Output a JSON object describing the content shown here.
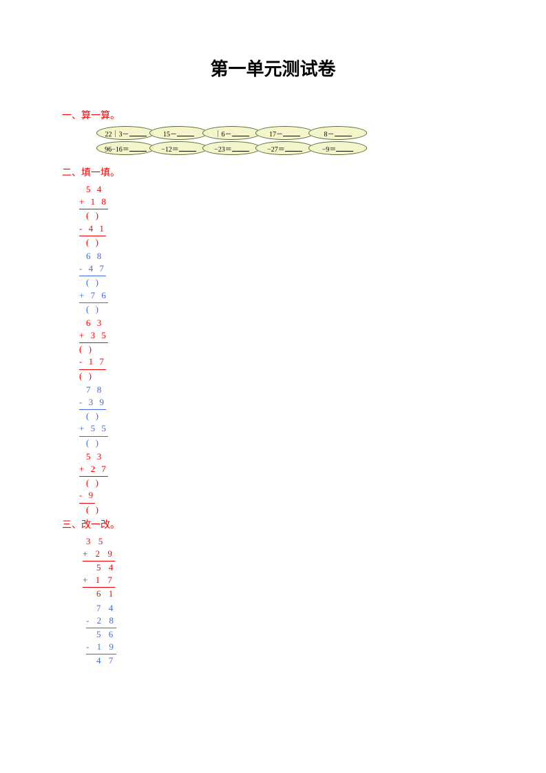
{
  "title": "第一单元测试卷",
  "section1": {
    "header": "一、算一算。",
    "row1": {
      "bg": "#f5f5cc",
      "border": "#556b2f",
      "cells": [
        "22｜3－",
        "15－",
        "｜6－",
        "17－",
        "8－"
      ]
    },
    "row2": {
      "bg": "#f5f5cc",
      "border": "#556b2f",
      "cells": [
        "96−16＝",
        "−12＝",
        "−23＝",
        "−27＝",
        "−9＝"
      ]
    }
  },
  "section2": {
    "header": "二、填一填。",
    "problems": [
      {
        "lines": [
          {
            "txt": "5 4",
            "u": false,
            "c": "red",
            "indent": 2
          },
          {
            "txt": "+ 1 8",
            "u": true,
            "c": "red",
            "indent": 1
          },
          {
            "txt": "(   )",
            "u": false,
            "c": "red",
            "indent": 2
          },
          {
            "txt": "- 4 1",
            "u": true,
            "c": "red",
            "indent": 1
          },
          {
            "txt": "(   )",
            "u": false,
            "c": "red",
            "indent": 2
          }
        ]
      },
      {
        "lines": [
          {
            "txt": "6 8",
            "u": false,
            "c": "blue",
            "indent": 2
          },
          {
            "txt": "- 4 7",
            "u": true,
            "c": "blue",
            "indent": 1
          },
          {
            "txt": "(   )",
            "u": false,
            "c": "blue",
            "indent": 2
          },
          {
            "txt": "+ 7 6",
            "u": true,
            "c": "blue",
            "indent": 1
          },
          {
            "txt": "(   )",
            "u": false,
            "c": "blue",
            "indent": 2
          }
        ]
      },
      {
        "lines": [
          {
            "txt": "6 3",
            "u": false,
            "c": "red",
            "indent": 2
          },
          {
            "txt": "+ 3 5",
            "u": true,
            "c": "red",
            "indent": 0
          },
          {
            "txt": "(   )",
            "u": false,
            "c": "red",
            "indent": 1
          },
          {
            "txt": "- 1 7",
            "u": true,
            "c": "red",
            "indent": 0
          },
          {
            "txt": "(   )",
            "u": false,
            "c": "red",
            "indent": 1
          }
        ]
      },
      {
        "lines": [
          {
            "txt": "7 8",
            "u": false,
            "c": "blue",
            "indent": 2
          },
          {
            "txt": "- 3 9",
            "u": true,
            "c": "blue",
            "indent": 0
          },
          {
            "txt": "(   )",
            "u": false,
            "c": "blue",
            "indent": 2
          },
          {
            "txt": "+ 5 5",
            "u": true,
            "c": "blue",
            "indent": 0
          },
          {
            "txt": "(   )",
            "u": false,
            "c": "blue",
            "indent": 2
          }
        ]
      },
      {
        "lines": [
          {
            "txt": "5 3",
            "u": false,
            "c": "red",
            "indent": 2
          },
          {
            "txt": "+ 2 7",
            "u": true,
            "c": "red",
            "indent": 1
          },
          {
            "txt": "(   )",
            "u": false,
            "c": "red",
            "indent": 2
          },
          {
            "txt": "-    9",
            "u": true,
            "c": "red",
            "indent": 1
          },
          {
            "txt": "(   )",
            "u": false,
            "c": "red",
            "indent": 2
          }
        ]
      }
    ]
  },
  "section3": {
    "header": "三、改一改。",
    "problems": [
      {
        "lines": [
          {
            "txt": "3 5",
            "u": false,
            "c": "red",
            "pad": 2
          },
          {
            "txt": "+ 2 9",
            "u": true,
            "c": "red",
            "pad": 1
          },
          {
            "txt": "5 4",
            "u": false,
            "c": "red",
            "pad": 3
          },
          {
            "txt": "+ 1 7",
            "u": true,
            "c": "red",
            "pad": 1
          },
          {
            "txt": "6 1",
            "u": false,
            "c": "red",
            "pad": 3
          }
        ]
      },
      {
        "lines": [
          {
            "txt": "7 4",
            "u": false,
            "c": "blue",
            "pad": 3
          },
          {
            "txt": "- 2 8",
            "u": true,
            "c": "blue",
            "pad": 2
          },
          {
            "txt": "5 6",
            "u": false,
            "c": "blue",
            "pad": 3
          },
          {
            "txt": "- 1 9",
            "u": true,
            "c": "blue",
            "pad": 2
          },
          {
            "txt": "4 7",
            "u": false,
            "c": "blue",
            "pad": 3
          }
        ]
      }
    ]
  }
}
